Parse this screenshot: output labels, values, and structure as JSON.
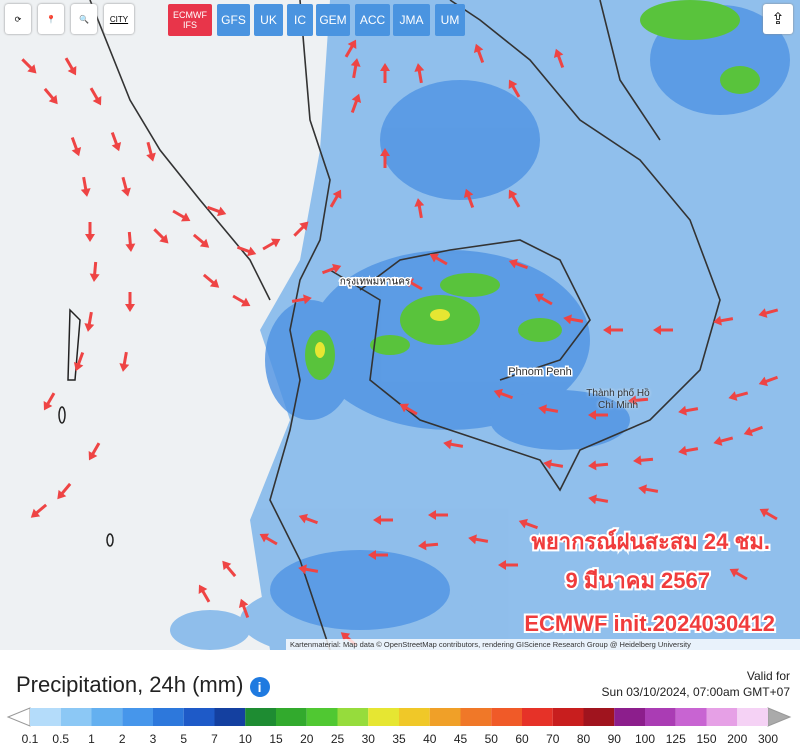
{
  "toolbar": {
    "city_button": "CITY"
  },
  "model_tabs": [
    {
      "label": "ECMWF IFS",
      "active": true
    },
    {
      "label": "GFS",
      "active": false
    },
    {
      "label": "UK",
      "active": false
    },
    {
      "label": "IC",
      "active": false
    },
    {
      "label": "GEM",
      "active": false
    },
    {
      "label": "ACC",
      "active": false
    },
    {
      "label": "JMA",
      "active": false
    },
    {
      "label": "UM",
      "active": false
    }
  ],
  "map": {
    "place_labels": [
      "กรุงเทพมหานคร",
      "Phnom Penh",
      "Thành phố Hồ Chí Minh"
    ],
    "overlay_lines": [
      "พยากรณ์ฝนสะสม 24 ชม.",
      "9 มีนาคม 2567",
      "ECMWF init.2024030412"
    ],
    "attribution": "Kartenmaterial: Map data © OpenStreetMap contributors, rendering GIScience Research Group @ Heidelberg University"
  },
  "footer": {
    "title": "Precipitation, 24h (mm)",
    "valid_label": "Valid for",
    "valid_time": "Sun 03/10/2024, 07:00am GMT+07"
  },
  "legend": {
    "labels": [
      0.1,
      0.5,
      1,
      2,
      3,
      5,
      7,
      10,
      15,
      20,
      25,
      30,
      35,
      40,
      45,
      50,
      60,
      70,
      80,
      90,
      100,
      125,
      150,
      200,
      300
    ],
    "colors": [
      "#b4dcfa",
      "#8cc8f5",
      "#64b0f0",
      "#4696eb",
      "#2d78dc",
      "#1e5ac8",
      "#1440a0",
      "#1e8c32",
      "#32aa2d",
      "#50c832",
      "#96dc3c",
      "#e6e632",
      "#f0c828",
      "#f0a028",
      "#f07828",
      "#f05a28",
      "#e63228",
      "#c81e1e",
      "#a0141e",
      "#8c1e8c",
      "#aa3cb4",
      "#c864d2",
      "#e6a0e6",
      "#f5d2f5"
    ]
  }
}
